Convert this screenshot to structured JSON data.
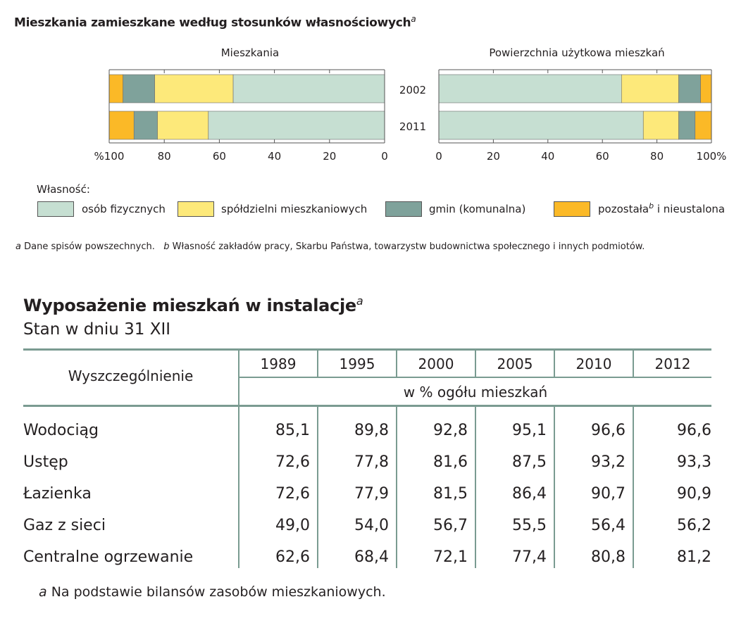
{
  "chart_title": "Mieszkania zamieszkane według stosunków własnościowych",
  "chart_title_note": "a",
  "chart_data": [
    {
      "type": "bar",
      "orientation": "horizontal-stacked",
      "title": "Mieszkania",
      "direction": "right-to-left",
      "categories": [
        "2002",
        "2011"
      ],
      "series": [
        {
          "name": "osób fizycznych",
          "color": "#c6dfd2",
          "values": [
            55.0,
            64.0
          ]
        },
        {
          "name": "spółdzielni mieszkaniowych",
          "color": "#fde97a",
          "values": [
            28.5,
            18.5
          ]
        },
        {
          "name": "gmin (komunalna)",
          "color": "#7fa29b",
          "values": [
            11.5,
            8.5
          ]
        },
        {
          "name": "pozostała i nieustalona",
          "color": "#fbb927",
          "values": [
            5.0,
            9.0
          ]
        }
      ],
      "xlim": [
        0,
        100
      ],
      "tick_labels": [
        "%100",
        "80",
        "60",
        "40",
        "20",
        "0"
      ]
    },
    {
      "type": "bar",
      "orientation": "horizontal-stacked",
      "title": "Powierzchnia użytkowa mieszkań",
      "direction": "left-to-right",
      "categories": [
        "2002",
        "2011"
      ],
      "series": [
        {
          "name": "osób fizycznych",
          "color": "#c6dfd2",
          "values": [
            67.0,
            75.0
          ]
        },
        {
          "name": "spółdzielni mieszkaniowych",
          "color": "#fde97a",
          "values": [
            21.0,
            13.0
          ]
        },
        {
          "name": "gmin (komunalna)",
          "color": "#7fa29b",
          "values": [
            8.0,
            6.0
          ]
        },
        {
          "name": "pozostała i nieustalona",
          "color": "#fbb927",
          "values": [
            4.0,
            6.0
          ]
        }
      ],
      "xlim": [
        0,
        100
      ],
      "tick_labels": [
        "0",
        "20",
        "40",
        "60",
        "80",
        "100%"
      ]
    }
  ],
  "legend": {
    "title": "Własność:",
    "items": [
      {
        "label": "osób fizycznych",
        "color": "#c6dfd2"
      },
      {
        "label": "spółdzielni mieszkaniowych",
        "color": "#fde97a"
      },
      {
        "label": "gmin (komunalna)",
        "color": "#7fa29b"
      },
      {
        "label_pre": "pozostała",
        "label_sup": "b",
        "label_post": " i nieustalona",
        "color": "#fbb927"
      }
    ]
  },
  "footnote_chart": {
    "a_mark": "a",
    "a_text": " Dane spisów powszechnych.",
    "b_mark": "b",
    "b_text": " Własność zakładów pracy, Skarbu Państwa, towarzystw budownictwa społecznego i innych podmiotów."
  },
  "table": {
    "title": "Wyposażenie mieszkań w instalacje",
    "title_note": "a",
    "subtitle": "Stan w dniu 31 XII",
    "row_header": "Wyszczególnienie",
    "years": [
      "1989",
      "1995",
      "2000",
      "2005",
      "2010",
      "2012"
    ],
    "unit": "w % ogółu mieszkań",
    "rows": [
      {
        "label": "Wodociąg",
        "values": [
          "85,1",
          "89,8",
          "92,8",
          "95,1",
          "96,6",
          "96,6"
        ]
      },
      {
        "label": "Ustęp",
        "values": [
          "72,6",
          "77,8",
          "81,6",
          "87,5",
          "93,2",
          "93,3"
        ]
      },
      {
        "label": "Łazienka",
        "values": [
          "72,6",
          "77,9",
          "81,5",
          "86,4",
          "90,7",
          "90,9"
        ]
      },
      {
        "label": "Gaz z sieci",
        "values": [
          "49,0",
          "54,0",
          "56,7",
          "55,5",
          "56,4",
          "56,2"
        ]
      },
      {
        "label": "Centralne ogrzewanie",
        "values": [
          "62,6",
          "68,4",
          "72,1",
          "77,4",
          "80,8",
          "81,2"
        ]
      }
    ],
    "footnote_mark": "a",
    "footnote_text": " Na podstawie bilansów zasobów mieszkaniowych."
  }
}
